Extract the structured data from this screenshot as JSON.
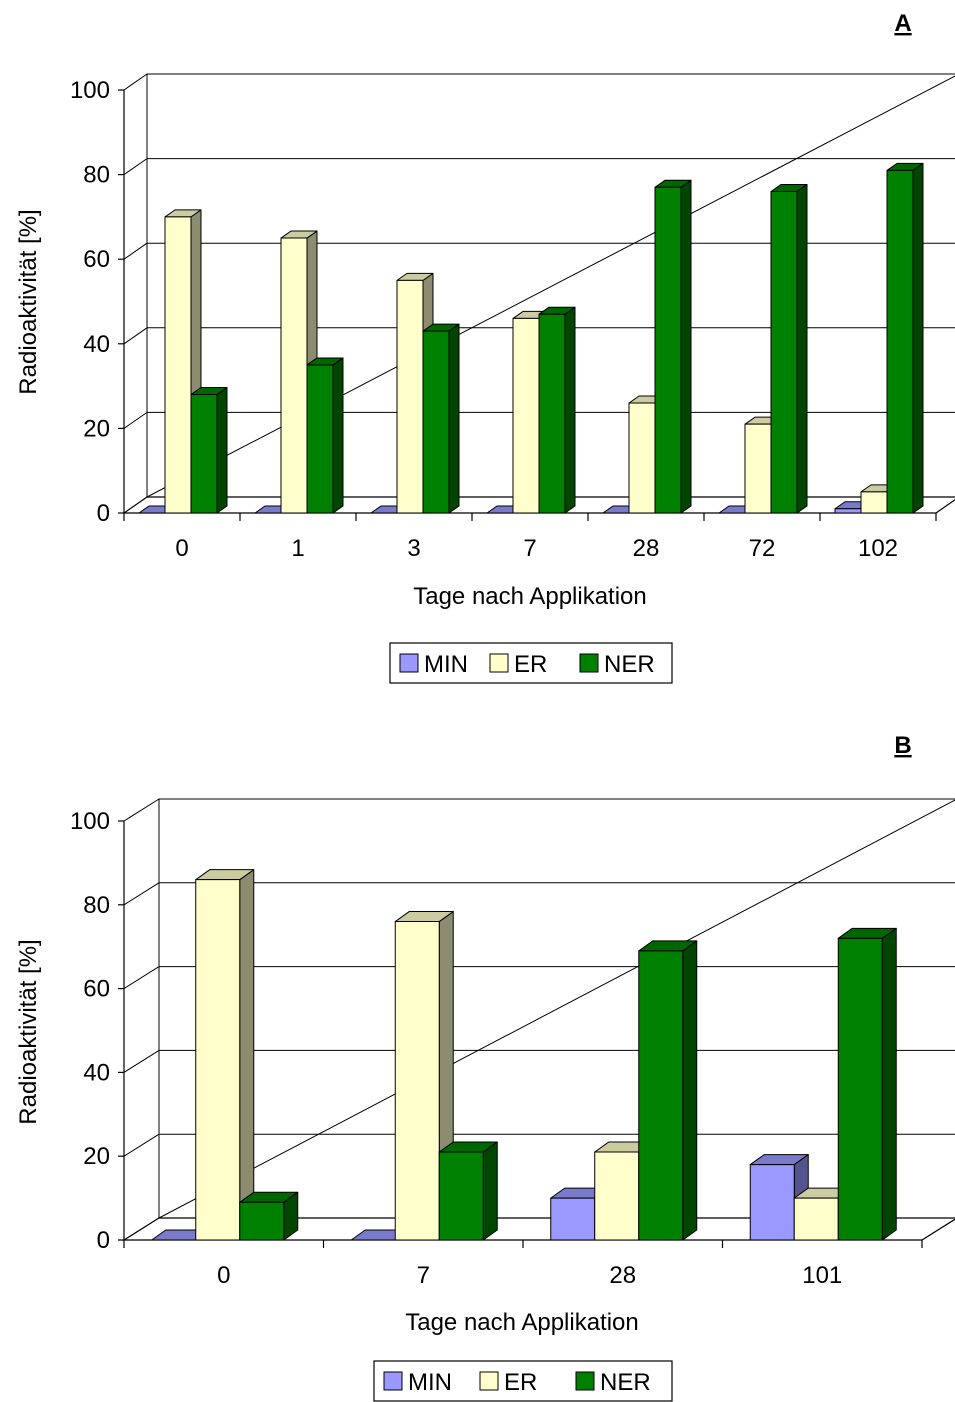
{
  "colors": {
    "MIN": "#9999ff",
    "ER": "#ffffcc",
    "NER": "#008000"
  },
  "chart_data": [
    {
      "type": "bar",
      "panel_label": "A",
      "title": "",
      "xlabel": "Tage nach Applikation",
      "ylabel": "Radioaktivität [%]",
      "ylim": [
        0,
        100
      ],
      "yticks": [
        "0",
        "20",
        "40",
        "60",
        "80",
        "100"
      ],
      "grid": true,
      "legend_position": "bottom",
      "categories": [
        "0",
        "1",
        "3",
        "7",
        "28",
        "72",
        "102"
      ],
      "series": [
        {
          "name": "MIN",
          "values": [
            0,
            0,
            0,
            0,
            0,
            0,
            1
          ]
        },
        {
          "name": "ER",
          "values": [
            70,
            65,
            55,
            46,
            26,
            21,
            5
          ]
        },
        {
          "name": "NER",
          "values": [
            28,
            35,
            43,
            47,
            77,
            76,
            81
          ]
        }
      ]
    },
    {
      "type": "bar",
      "panel_label": "B",
      "title": "",
      "xlabel": "Tage nach Applikation",
      "ylabel": "Radioaktivität [%]",
      "ylim": [
        0,
        100
      ],
      "yticks": [
        "0",
        "20",
        "40",
        "60",
        "80",
        "100"
      ],
      "grid": true,
      "legend_position": "bottom",
      "categories": [
        "0",
        "7",
        "28",
        "101"
      ],
      "series": [
        {
          "name": "MIN",
          "values": [
            0,
            0,
            10,
            18
          ]
        },
        {
          "name": "ER",
          "values": [
            86,
            76,
            21,
            10
          ]
        },
        {
          "name": "NER",
          "values": [
            9,
            21,
            69,
            72
          ]
        }
      ]
    }
  ]
}
